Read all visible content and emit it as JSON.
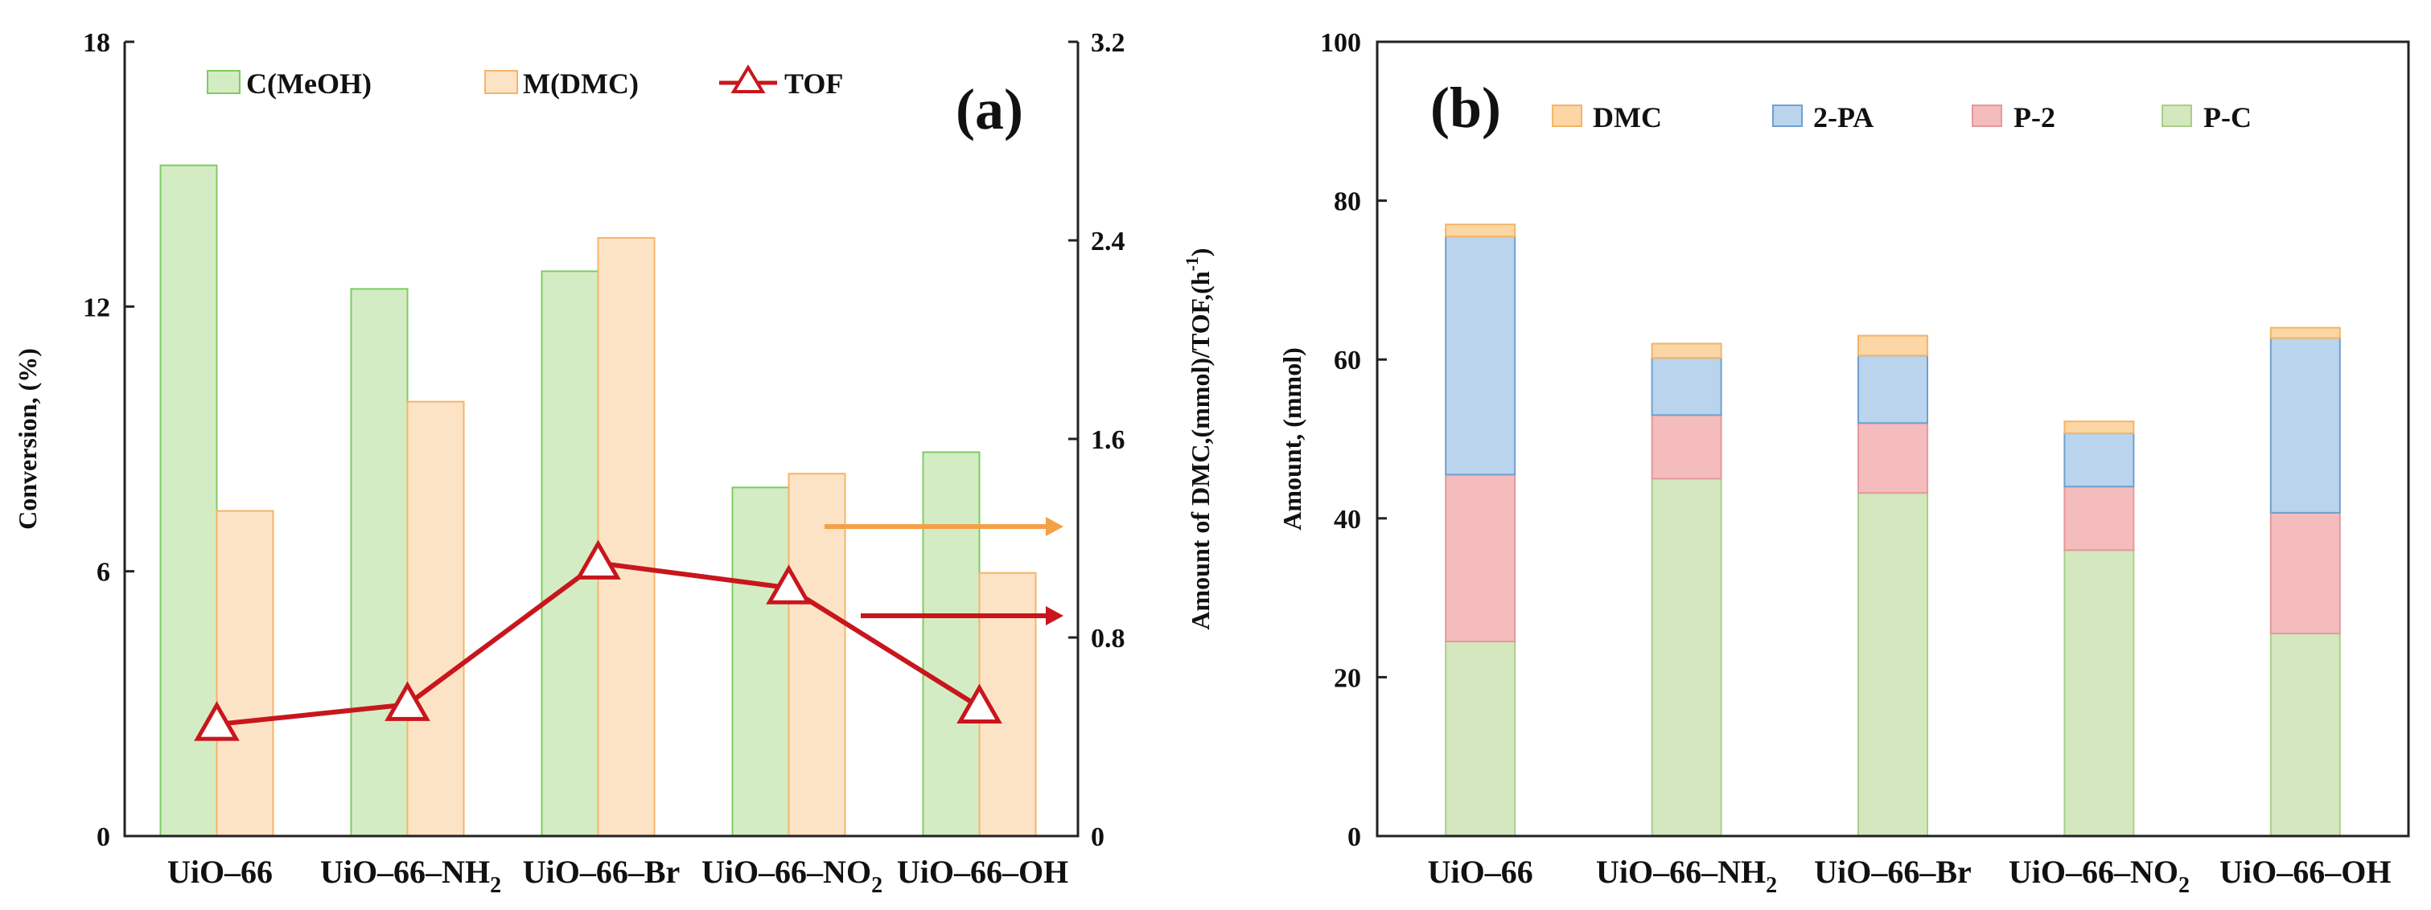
{
  "chart_data": [
    {
      "panel": "(a)",
      "type": "bar",
      "categories": [
        "UiO–66",
        "UiO–66–NH2",
        "UiO–66–Br",
        "UiO–66–NO2",
        "UiO–66–OH"
      ],
      "category_parts": [
        {
          "main": "UiO–66",
          "sub": ""
        },
        {
          "main": "UiO–66–NH",
          "sub": "2"
        },
        {
          "main": "UiO–66–Br",
          "sub": ""
        },
        {
          "main": "UiO–66–NO",
          "sub": "2"
        },
        {
          "main": "UiO–66–OH",
          "sub": ""
        }
      ],
      "series": [
        {
          "name": "C(MeOH)",
          "type": "bar",
          "axis": "left",
          "color": "#d4ecc4",
          "edge": "#7ccc60",
          "values": [
            15.2,
            12.4,
            12.8,
            7.9,
            8.7
          ]
        },
        {
          "name": "M(DMC)",
          "type": "bar",
          "axis": "right",
          "color": "#fde3c6",
          "edge": "#f5b46a",
          "values": [
            1.31,
            1.75,
            2.41,
            1.46,
            1.06
          ]
        },
        {
          "name": "TOF",
          "type": "line",
          "axis": "right",
          "color": "#c8161d",
          "values": [
            0.45,
            0.53,
            1.1,
            1.0,
            0.52
          ]
        }
      ],
      "ylabel": "Conversion, (%)",
      "ylabel_right": "Amount of DMC,(mmol)/TOF,(h-1)",
      "ylabel_right_main": "Amount of DMC,(mmol)/TOF,(h",
      "ylabel_right_sup": "-1",
      "ylabel_right_end": ")",
      "ylim": [
        0,
        18
      ],
      "ylim_right": [
        0,
        3.2
      ],
      "yticks": [
        "0",
        "6",
        "12",
        "18"
      ],
      "yticks_right": [
        "0",
        "0.8",
        "1.6",
        "2.4",
        "3.2"
      ],
      "legend": [
        "C(MeOH)",
        "M(DMC)",
        "TOF"
      ],
      "arrow_colors": [
        "#f5a046",
        "#c8161d"
      ]
    },
    {
      "panel": "(b)",
      "type": "stacked-bar",
      "categories": [
        "UiO–66",
        "UiO–66–NH2",
        "UiO–66–Br",
        "UiO–66–NO2",
        "UiO–66–OH"
      ],
      "category_parts": [
        {
          "main": "UiO–66",
          "sub": ""
        },
        {
          "main": "UiO–66–NH",
          "sub": "2"
        },
        {
          "main": "UiO–66–Br",
          "sub": ""
        },
        {
          "main": "UiO–66–NO",
          "sub": "2"
        },
        {
          "main": "UiO–66–OH",
          "sub": ""
        }
      ],
      "series": [
        {
          "name": "P-C",
          "color": "#d4e7be",
          "edge": "#a9cf8a",
          "values": [
            24.5,
            45.0,
            43.2,
            36.0,
            25.5
          ]
        },
        {
          "name": "P-2",
          "color": "#f4bcbc",
          "edge": "#e39a9a",
          "values": [
            21.0,
            8.0,
            8.8,
            8.0,
            15.2
          ]
        },
        {
          "name": "2-PA",
          "color": "#b9d4ec",
          "edge": "#6fa0cf",
          "values": [
            30.0,
            7.2,
            8.5,
            6.7,
            22.0
          ]
        },
        {
          "name": "DMC",
          "color": "#fcd6a4",
          "edge": "#f2b567",
          "values": [
            1.5,
            1.8,
            2.5,
            1.5,
            1.3
          ]
        }
      ],
      "ylabel": "Amount, (mmol)",
      "ylim": [
        0,
        100
      ],
      "yticks": [
        "0",
        "20",
        "40",
        "60",
        "80",
        "100"
      ],
      "legend": [
        "DMC",
        "2-PA",
        "P-2",
        "P-C"
      ]
    }
  ]
}
